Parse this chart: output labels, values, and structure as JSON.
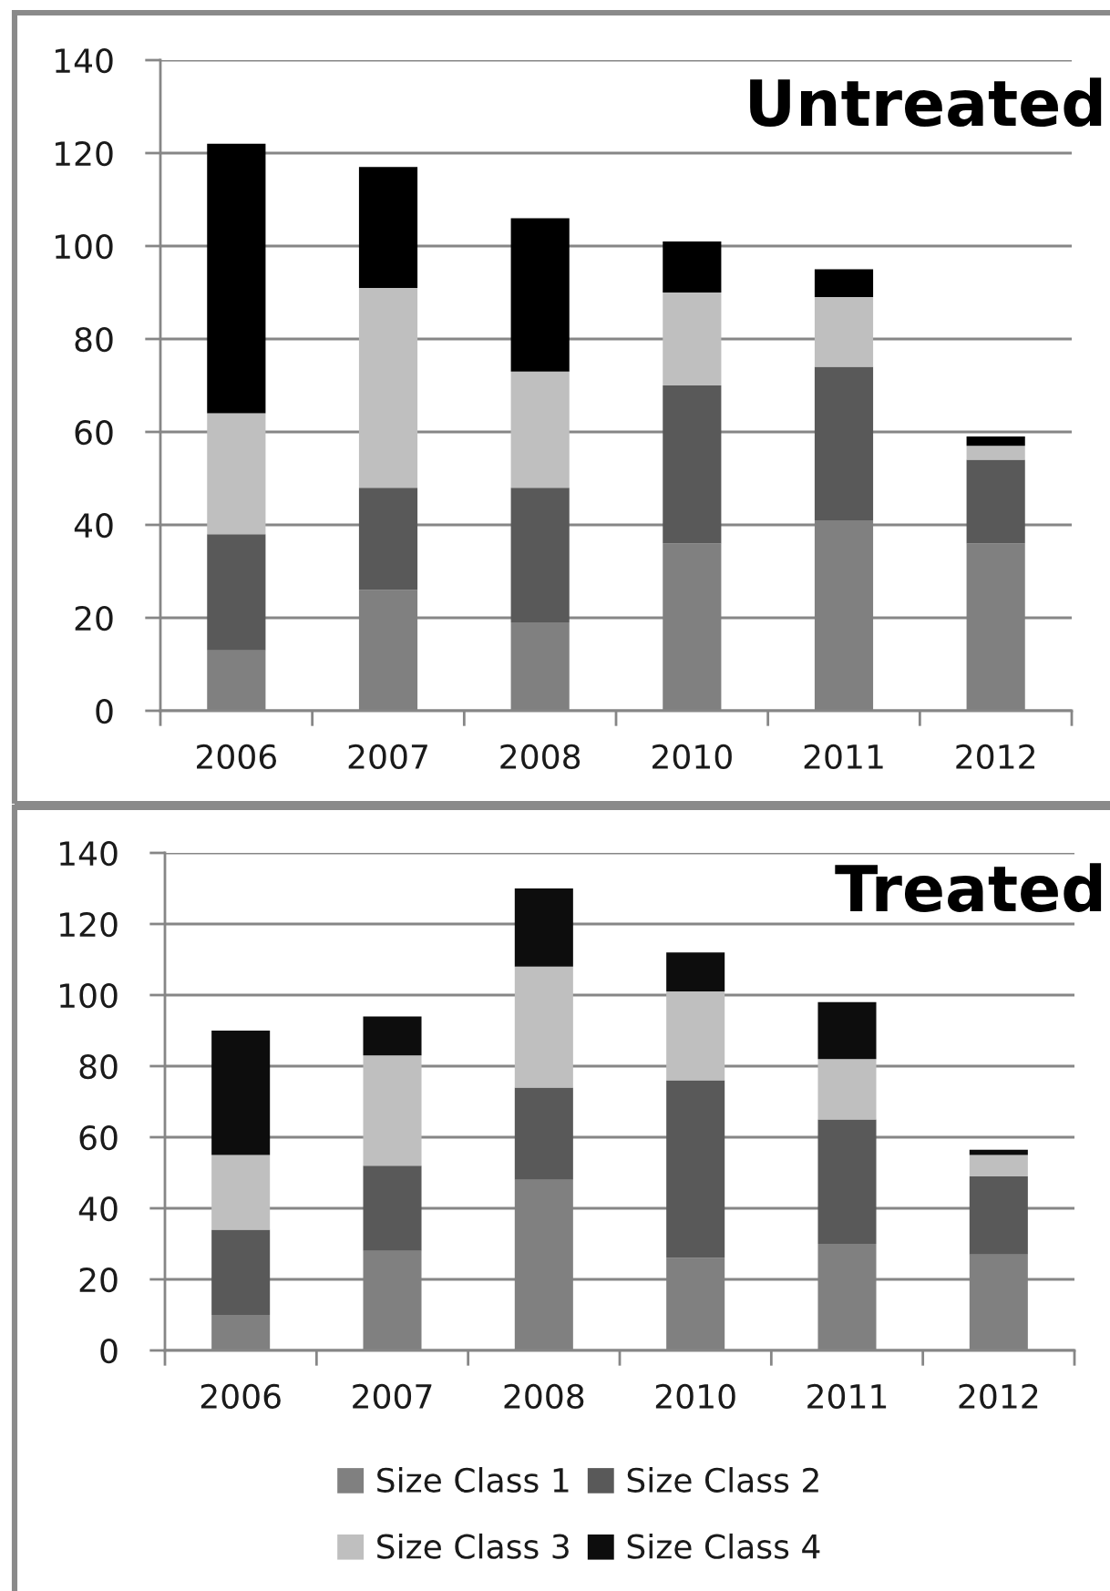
{
  "chart_data": [
    {
      "type": "bar",
      "title": "Untreated",
      "categories": [
        "2006",
        "2007",
        "2008",
        "2010",
        "2011",
        "2012"
      ],
      "stacked": true,
      "series": [
        {
          "color": "#808080",
          "values": [
            13,
            26,
            19,
            36,
            41,
            36
          ]
        },
        {
          "color": "#595959",
          "values": [
            25,
            22,
            29,
            34,
            33,
            18
          ]
        },
        {
          "color": "#bfbfbf",
          "values": [
            26,
            43,
            25,
            20,
            15,
            3
          ]
        },
        {
          "color": "#000000",
          "values": [
            58,
            26,
            33,
            11,
            6,
            2
          ]
        }
      ],
      "ylim": [
        0,
        140
      ],
      "yticks": [
        0,
        20,
        40,
        60,
        80,
        100,
        120,
        140
      ],
      "grid": "y"
    },
    {
      "type": "bar",
      "title": "Treated",
      "categories": [
        "2006",
        "2007",
        "2008",
        "2010",
        "2011",
        "2012"
      ],
      "stacked": true,
      "series": [
        {
          "name": "Size Class 1",
          "color": "#808080",
          "values": [
            10,
            28,
            48,
            26,
            30,
            27
          ]
        },
        {
          "name": "Size Class 2",
          "color": "#595959",
          "values": [
            24,
            24,
            26,
            50,
            35,
            22
          ]
        },
        {
          "name": "Size Class 3",
          "color": "#bfbfbf",
          "values": [
            21,
            31,
            34,
            25,
            17,
            6
          ]
        },
        {
          "name": "Size Class 4",
          "color": "#0d0d0d",
          "values": [
            35,
            11,
            22,
            11,
            16,
            1.5
          ]
        }
      ],
      "ylim": [
        0,
        140
      ],
      "yticks": [
        0,
        20,
        40,
        60,
        80,
        100,
        120,
        140
      ],
      "grid": "y",
      "legend": "bottom"
    }
  ]
}
